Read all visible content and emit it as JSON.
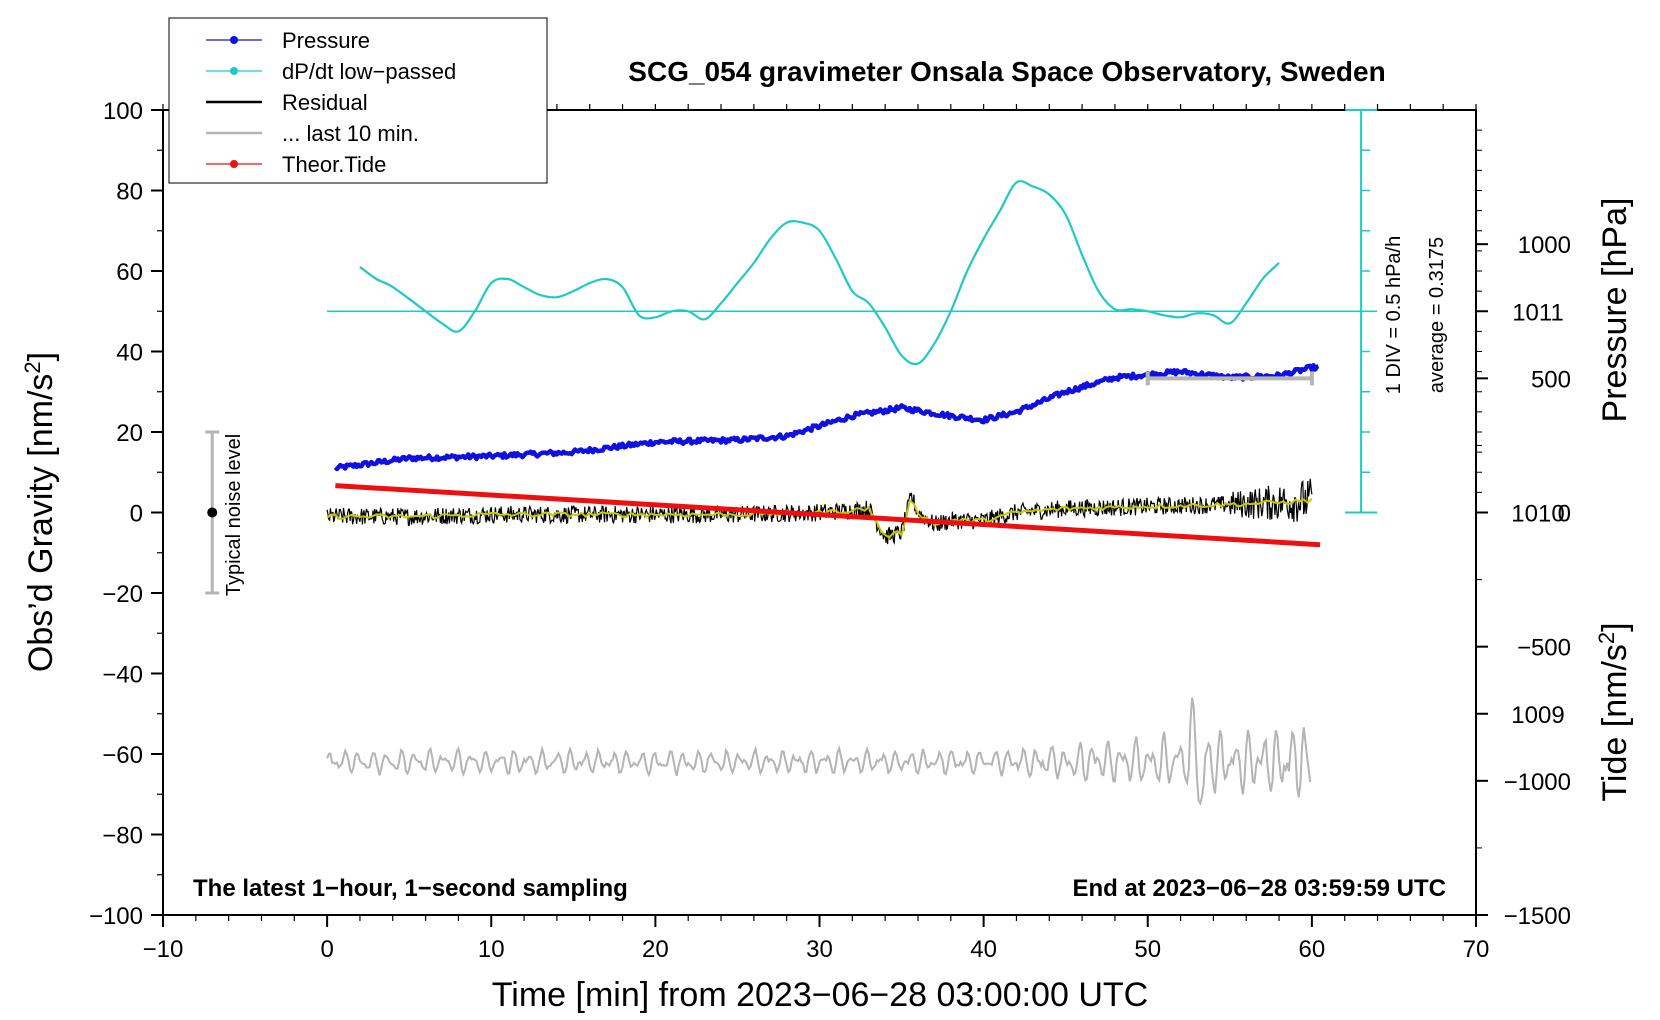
{
  "chart_data": {
    "type": "line",
    "title": "SCG_054 gravimeter Onsala Space Observatory, Sweden",
    "xlabel": "Time [min] from 2023−06−28 03:00:00 UTC",
    "ylabel_left": "Obs’d Gravity [nm/s²]",
    "ylabel_right_top": "Pressure [hPa]",
    "ylabel_right_bottom": "Tide [nm/s²]",
    "xlim": [
      -10,
      70
    ],
    "ylim": [
      -100,
      100
    ],
    "pressure_lim": [
      1008,
      1012
    ],
    "tide_lim": [
      -1500,
      1500
    ],
    "x_ticks": [
      "−10",
      "0",
      "10",
      "20",
      "30",
      "40",
      "50",
      "60",
      "70"
    ],
    "x_tick_values": [
      -10,
      0,
      10,
      20,
      30,
      40,
      50,
      60,
      70
    ],
    "y_ticks": [
      "100",
      "80",
      "60",
      "40",
      "20",
      "0",
      "−20",
      "−40",
      "−60",
      "−80",
      "−100"
    ],
    "y_tick_values": [
      100,
      80,
      60,
      40,
      20,
      0,
      -20,
      -40,
      -60,
      -80,
      -100
    ],
    "pressure_ticks": [
      "1011",
      "1010",
      "1009"
    ],
    "pressure_tick_values": [
      1011,
      1010,
      1009
    ],
    "tide_ticks": [
      "1000",
      "500",
      "0",
      "−500",
      "−1000",
      "−1500"
    ],
    "tide_tick_values": [
      1000,
      500,
      0,
      -500,
      -1000,
      -1500
    ],
    "legend": [
      {
        "label": "Pressure",
        "color": "#1010e0",
        "marker": true
      },
      {
        "label": "dP/dt low−passed",
        "color": "#20c8c8",
        "marker": true
      },
      {
        "label": "Residual",
        "color": "#000000",
        "marker": false
      },
      {
        "label": "... last 10 min.",
        "color": "#b4b4b4",
        "marker": false
      },
      {
        "label": "Theor.Tide",
        "color": "#ee1010",
        "marker": true
      }
    ],
    "noise_label": "Typical noise level",
    "noise_bar": {
      "x": -7,
      "center": 0,
      "low": -20,
      "high": 20
    },
    "div_label": "1 DIV = 0.5 hPa/h",
    "average_label": "average = 0.3175",
    "bottom_left_note": "The latest 1−hour, 1−second sampling",
    "bottom_right_note": "End at 2023−06−28 03:59:59 UTC",
    "last10_range": [
      50,
      60
    ],
    "series": [
      {
        "name": "Pressure",
        "axis": "pressure",
        "x": [
          0.5,
          5,
          10,
          15,
          20,
          25,
          28,
          32,
          35,
          38,
          40,
          42,
          45,
          48,
          52,
          55,
          58,
          60
        ],
        "values": [
          1010.22,
          1010.27,
          1010.28,
          1010.3,
          1010.35,
          1010.36,
          1010.38,
          1010.48,
          1010.52,
          1010.48,
          1010.46,
          1010.5,
          1010.6,
          1010.67,
          1010.7,
          1010.67,
          1010.68,
          1010.72
        ]
      },
      {
        "name": "dP/dt low−passed",
        "axis": "gravity",
        "x": [
          2,
          3,
          4,
          6,
          7,
          8,
          9,
          10,
          11,
          12,
          13,
          14,
          15,
          16,
          17,
          18,
          19,
          20,
          21,
          22,
          23,
          24,
          25,
          26,
          27,
          28,
          29,
          30,
          31,
          32,
          33,
          34,
          35,
          36,
          37,
          38,
          39,
          40,
          41,
          42,
          43,
          44,
          45,
          46,
          47,
          48,
          49,
          50,
          51,
          52,
          53,
          54,
          55,
          56,
          57,
          58
        ],
        "values": [
          61,
          58,
          56,
          50,
          47,
          45,
          50,
          57,
          58,
          56,
          54,
          53.5,
          55,
          57,
          58,
          56,
          49,
          48.5,
          50,
          50,
          48,
          52,
          57,
          62,
          68,
          72,
          72,
          70,
          63,
          55,
          52,
          46,
          39,
          37,
          42,
          50,
          60,
          68,
          75,
          82,
          81,
          79,
          74,
          64,
          55,
          50.5,
          50.5,
          50,
          49,
          48.5,
          49.5,
          49,
          47,
          52,
          58,
          62
        ]
      },
      {
        "name": "Residual",
        "axis": "gravity",
        "x": [
          0,
          5,
          10,
          15,
          20,
          25,
          30,
          32,
          33,
          34,
          35,
          35.6,
          36,
          37,
          38,
          40,
          42,
          45,
          50,
          55,
          58,
          60
        ],
        "values": [
          -1,
          -1,
          -0.5,
          -0.5,
          -0.5,
          -0.5,
          0,
          0.5,
          1,
          -6,
          -5,
          4,
          0,
          -3,
          -2,
          -2,
          0,
          1,
          1.5,
          2,
          2.5,
          3
        ]
      },
      {
        "name": "Theor.Tide",
        "axis": "tide",
        "x": [
          0.5,
          60.5
        ],
        "values": [
          100,
          -120
        ]
      },
      {
        "name": "... last 10 min.",
        "axis": "gravity",
        "baseline": -62
      }
    ]
  }
}
